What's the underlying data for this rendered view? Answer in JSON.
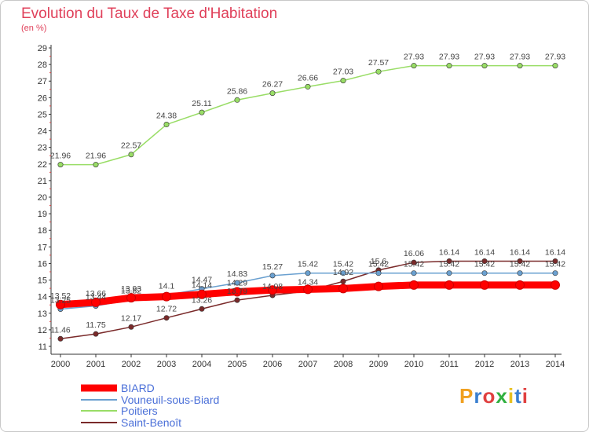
{
  "title": "Evolution du Taux de Taxe d'Habitation",
  "unit_label": "(en %)",
  "brand": {
    "text": "Proxiti",
    "colors": [
      "#f0a020",
      "#3a7fd0",
      "#e04040",
      "#30b040",
      "#e8c020",
      "#3a7fd0",
      "#e04040"
    ]
  },
  "chart_data": {
    "type": "line",
    "title": "Evolution du Taux de Taxe d'Habitation",
    "ylabel": "(en %)",
    "xlabel": "",
    "x": [
      "2000",
      "2001",
      "2002",
      "2003",
      "2004",
      "2005",
      "2006",
      "2007",
      "2008",
      "2009",
      "2010",
      "2011",
      "2012",
      "2013",
      "2014"
    ],
    "ylim": [
      11,
      29
    ],
    "yticks": [
      "11",
      "12",
      "13",
      "14",
      "15",
      "16",
      "17",
      "18",
      "19",
      "20",
      "21",
      "22",
      "23",
      "24",
      "25",
      "26",
      "27",
      "28",
      "29"
    ],
    "grid": false,
    "legend_position": "bottom-left",
    "series": [
      {
        "name": "BIARD",
        "color": "#ff0000",
        "emphasis": true,
        "values": [
          13.52,
          13.66,
          13.93,
          14.0,
          14.14,
          14.29,
          14.4,
          14.44,
          14.49,
          14.62,
          14.7,
          14.7,
          14.7,
          14.7,
          14.7
        ],
        "labels": [
          "13.52",
          "13.66",
          "13.93",
          "",
          "14.14",
          "14.29",
          "",
          "",
          "",
          "",
          "",
          "",
          "",
          "",
          ""
        ]
      },
      {
        "name": "Vouneuil-sous-Biard",
        "color": "#6aa0d0",
        "values": [
          13.25,
          13.44,
          13.82,
          14.1,
          14.47,
          14.83,
          15.27,
          15.42,
          15.42,
          15.42,
          15.42,
          15.42,
          15.42,
          15.42,
          15.42
        ],
        "labels": [
          "13.25",
          "13.44",
          "13.82",
          "14.1",
          "14.47",
          "14.83",
          "15.27",
          "15.42",
          "15.42",
          "15.42",
          "15.42",
          "15.42",
          "15.42",
          "15.42",
          "15.42"
        ]
      },
      {
        "name": "Poitiers",
        "color": "#99dd66",
        "values": [
          21.96,
          21.96,
          22.57,
          24.38,
          25.11,
          25.86,
          26.27,
          26.66,
          27.03,
          27.57,
          27.93,
          27.93,
          27.93,
          27.93,
          27.93
        ],
        "labels": [
          "21.96",
          "21.96",
          "22.57",
          "24.38",
          "25.11",
          "25.86",
          "26.27",
          "26.66",
          "27.03",
          "27.57",
          "27.93",
          "27.93",
          "27.93",
          "27.93",
          "27.93"
        ]
      },
      {
        "name": "Saint-Benoît",
        "color": "#7a2a2a",
        "values": [
          11.46,
          11.75,
          12.17,
          12.72,
          13.26,
          13.79,
          14.08,
          14.34,
          14.92,
          15.6,
          16.06,
          16.14,
          16.14,
          16.14,
          16.14
        ],
        "labels": [
          "11.46",
          "11.75",
          "12.17",
          "12.72",
          "13.26",
          "13.79",
          "14.08",
          "14.34",
          "14.92",
          "15.6",
          "16.06",
          "16.14",
          "16.14",
          "16.14",
          "16.14"
        ]
      }
    ]
  }
}
